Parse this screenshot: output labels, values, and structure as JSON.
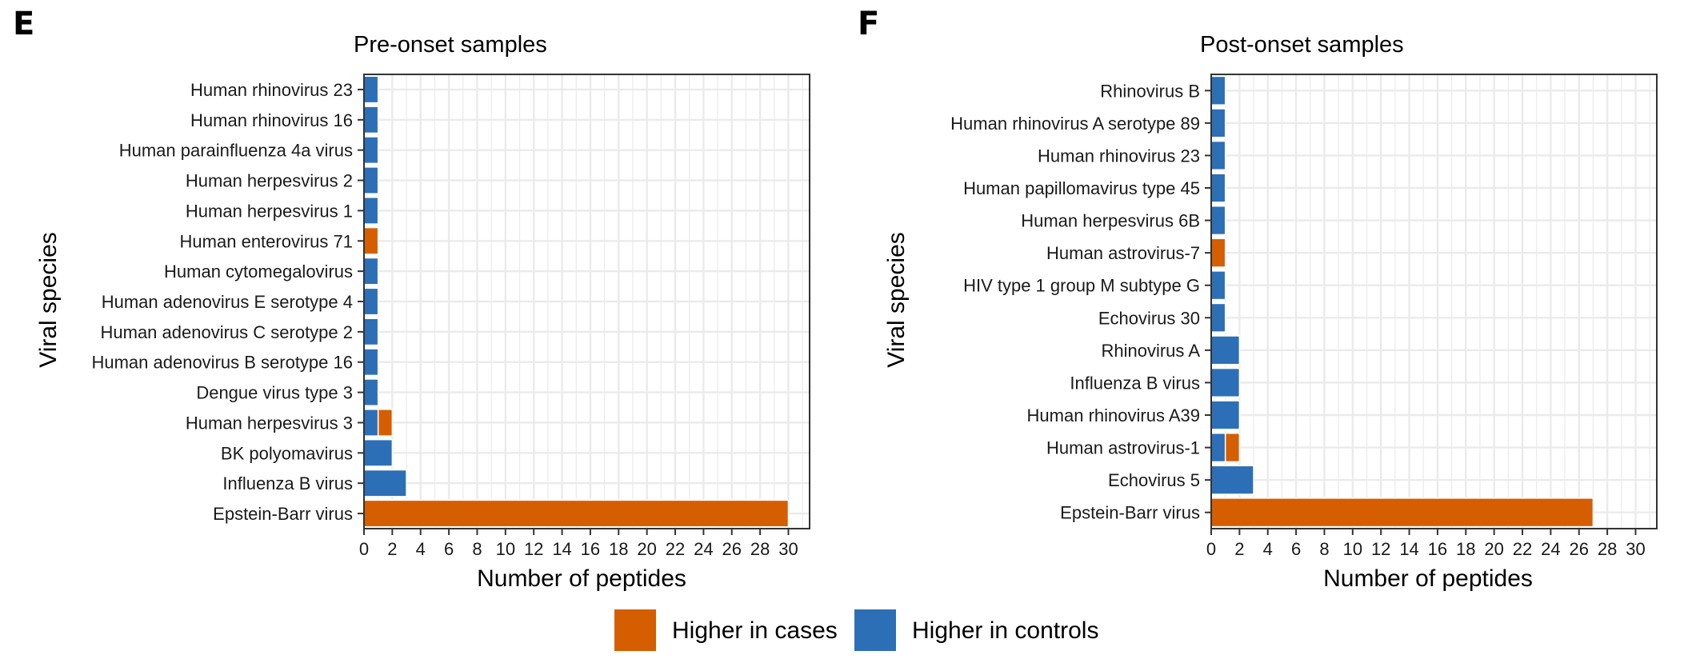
{
  "chart_data": [
    {
      "panel": "E",
      "type": "bar",
      "orientation": "horizontal",
      "stacked": true,
      "title": "Pre-onset samples",
      "xlabel": "Number of peptides",
      "ylabel": "Viral species",
      "xlim": [
        0,
        31.5
      ],
      "xticks": [
        0,
        2,
        4,
        6,
        8,
        10,
        12,
        14,
        16,
        18,
        20,
        22,
        24,
        26,
        28,
        30
      ],
      "grid": true,
      "categories": [
        "Human rhinovirus 23",
        "Human rhinovirus 16",
        "Human parainfluenza 4a virus",
        "Human herpesvirus 2",
        "Human herpesvirus 1",
        "Human enterovirus 71",
        "Human cytomegalovirus",
        "Human adenovirus E serotype 4",
        "Human adenovirus C serotype 2",
        "Human adenovirus B serotype 16",
        "Dengue virus type 3",
        "Human herpesvirus 3",
        "BK polyomavirus",
        "Influenza B virus",
        "Epstein-Barr virus"
      ],
      "series": [
        {
          "name": "Higher in controls",
          "values": [
            1,
            1,
            1,
            1,
            1,
            0,
            1,
            1,
            1,
            1,
            1,
            1,
            2,
            3,
            0
          ]
        },
        {
          "name": "Higher in cases",
          "values": [
            0,
            0,
            0,
            0,
            0,
            1,
            0,
            0,
            0,
            0,
            0,
            1,
            0,
            0,
            30
          ]
        }
      ]
    },
    {
      "panel": "F",
      "type": "bar",
      "orientation": "horizontal",
      "stacked": true,
      "title": "Post-onset samples",
      "xlabel": "Number of peptides",
      "ylabel": "Viral species",
      "xlim": [
        0,
        31.5
      ],
      "xticks": [
        0,
        2,
        4,
        6,
        8,
        10,
        12,
        14,
        16,
        18,
        20,
        22,
        24,
        26,
        28,
        30
      ],
      "grid": true,
      "categories": [
        "Rhinovirus B",
        "Human rhinovirus A serotype 89",
        "Human rhinovirus 23",
        "Human papillomavirus type 45",
        "Human herpesvirus 6B",
        "Human astrovirus-7",
        "HIV type 1 group M subtype G",
        "Echovirus 30",
        "Rhinovirus A",
        "Influenza B virus",
        "Human rhinovirus A39",
        "Human astrovirus-1",
        "Echovirus 5",
        "Epstein-Barr virus"
      ],
      "series": [
        {
          "name": "Higher in controls",
          "values": [
            1,
            1,
            1,
            1,
            1,
            0,
            1,
            1,
            2,
            2,
            2,
            1,
            3,
            0
          ]
        },
        {
          "name": "Higher in cases",
          "values": [
            0,
            0,
            0,
            0,
            0,
            1,
            0,
            0,
            0,
            0,
            0,
            1,
            0,
            27
          ]
        }
      ]
    }
  ],
  "legend": {
    "position": "bottom-center",
    "items": [
      {
        "label": "Higher in cases",
        "color": "#D55E00"
      },
      {
        "label": "Higher in controls",
        "color": "#2D6FB6"
      }
    ]
  },
  "colors": {
    "cases": "#D55E00",
    "controls": "#2D6FB6",
    "grid": "#EBEBEB",
    "frame": "#333333"
  }
}
